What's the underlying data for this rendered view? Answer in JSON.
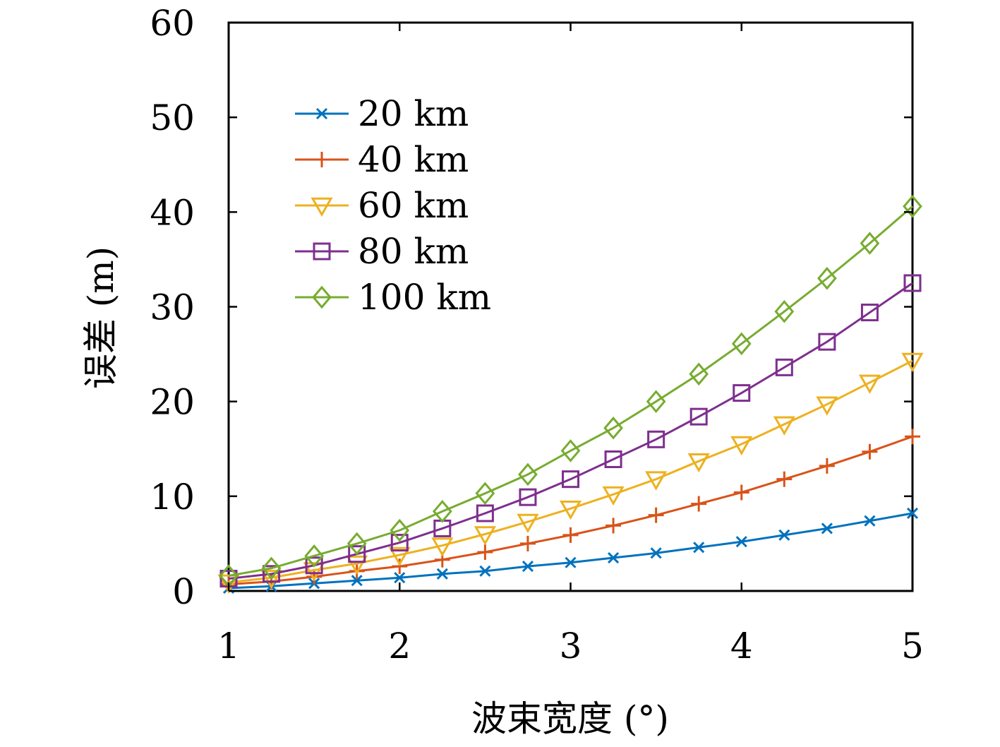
{
  "chart_data": {
    "type": "line",
    "title": "",
    "xlabel": "波束宽度 (°)",
    "ylabel": "误差 (m)",
    "xlim": [
      1,
      5
    ],
    "ylim": [
      0,
      60
    ],
    "xticks": [
      1,
      2,
      3,
      4,
      5
    ],
    "yticks": [
      0,
      10,
      20,
      30,
      40,
      50,
      60
    ],
    "grid": false,
    "legend_position": "top-left",
    "x": [
      1,
      1.25,
      1.5,
      1.75,
      2,
      2.25,
      2.5,
      2.75,
      3,
      3.25,
      3.5,
      3.75,
      4,
      4.25,
      4.5,
      4.75,
      5
    ],
    "series": [
      {
        "name": "20 km",
        "color": "#0072BD",
        "marker": "x",
        "values": [
          0.3,
          0.5,
          0.8,
          1.1,
          1.4,
          1.8,
          2.1,
          2.6,
          3.0,
          3.5,
          4.0,
          4.6,
          5.2,
          5.9,
          6.6,
          7.4,
          8.2
        ]
      },
      {
        "name": "40 km",
        "color": "#D95319",
        "marker": "+",
        "values": [
          0.7,
          1.0,
          1.5,
          2.1,
          2.6,
          3.3,
          4.1,
          5.0,
          5.9,
          6.9,
          8.0,
          9.2,
          10.4,
          11.8,
          13.2,
          14.7,
          16.3
        ]
      },
      {
        "name": "60 km",
        "color": "#EDB120",
        "marker": "triangle-down",
        "values": [
          0.9,
          1.4,
          2.2,
          2.9,
          3.8,
          4.8,
          6.0,
          7.3,
          8.7,
          10.2,
          11.8,
          13.7,
          15.5,
          17.6,
          19.7,
          22.0,
          24.3
        ]
      },
      {
        "name": "80 km",
        "color": "#7E2F8E",
        "marker": "square",
        "values": [
          1.3,
          1.8,
          2.7,
          3.9,
          5.1,
          6.6,
          8.2,
          9.9,
          11.8,
          13.9,
          16.0,
          18.4,
          20.9,
          23.6,
          26.3,
          29.4,
          32.5
        ]
      },
      {
        "name": "100 km",
        "color": "#77AC30",
        "marker": "diamond",
        "values": [
          1.6,
          2.4,
          3.7,
          5.0,
          6.4,
          8.4,
          10.3,
          12.3,
          14.8,
          17.2,
          20.0,
          22.9,
          26.1,
          29.5,
          33.0,
          36.7,
          40.6
        ]
      }
    ]
  }
}
